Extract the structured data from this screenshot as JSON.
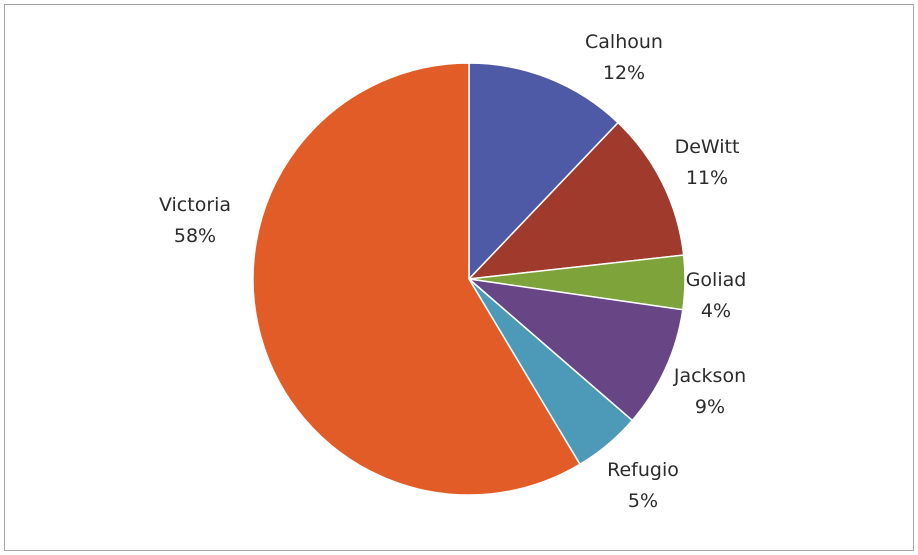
{
  "chart_data": {
    "type": "pie",
    "title": "",
    "start_angle_deg": 0,
    "direction": "clockwise",
    "slices": [
      {
        "label": "Calhoun",
        "value": 12,
        "pct_label": "12%",
        "color": "#4f5aa6"
      },
      {
        "label": "DeWitt",
        "value": 11,
        "pct_label": "11%",
        "color": "#a03a2c"
      },
      {
        "label": "Goliad",
        "value": 4,
        "pct_label": "4%",
        "color": "#7ea33a"
      },
      {
        "label": "Jackson",
        "value": 9,
        "pct_label": "9%",
        "color": "#684686"
      },
      {
        "label": "Refugio",
        "value": 5,
        "pct_label": "5%",
        "color": "#4d9ab8"
      },
      {
        "label": "Victoria",
        "value": 58,
        "pct_label": "58%",
        "color": "#e15c26"
      }
    ],
    "legend": "none",
    "data_labels": "outside, category name and percentage"
  }
}
